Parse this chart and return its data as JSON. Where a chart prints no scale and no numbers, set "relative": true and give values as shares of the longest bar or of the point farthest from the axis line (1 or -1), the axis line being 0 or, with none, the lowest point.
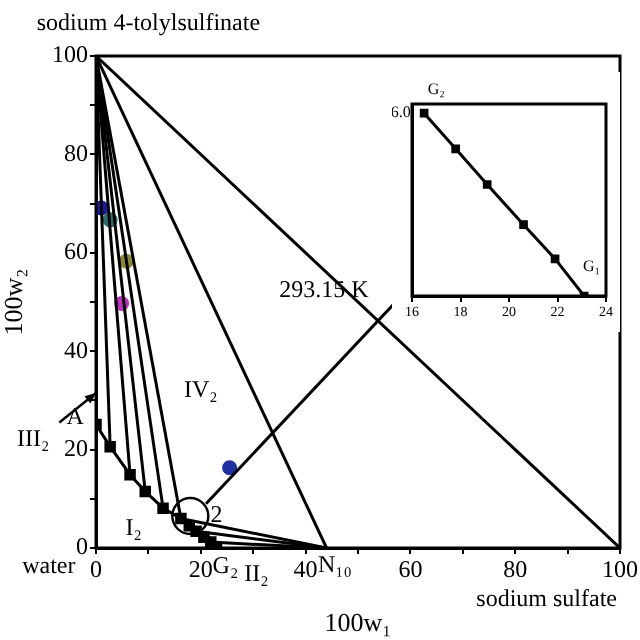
{
  "chart_data": [
    {
      "type": "line",
      "xlabel": "100w₁",
      "ylabel": "100w₂",
      "xlim": [
        0,
        100
      ],
      "ylim": [
        0,
        100
      ],
      "xticks": [
        0,
        {
          "value": 10,
          "label": null
        },
        20,
        {
          "value": 30,
          "label": null
        },
        40,
        {
          "value": 50,
          "label": null
        },
        60,
        {
          "value": 70,
          "label": null
        },
        80,
        {
          "value": 90,
          "label": null
        },
        100
      ],
      "yticks": [
        0,
        {
          "value": 10,
          "label": null
        },
        20,
        {
          "value": 30,
          "label": null
        },
        40,
        {
          "value": 50,
          "label": null
        },
        60,
        {
          "value": 70,
          "label": null
        },
        80,
        {
          "value": 90,
          "label": null
        },
        100
      ],
      "grid": false,
      "legend": false,
      "marker": "none",
      "series": [
        {
          "type": "line",
          "color": "#000000",
          "marker": "square",
          "x": [
            0,
            2.7,
            6.5,
            9.4,
            12.8,
            16.2,
            17.8,
            19.1,
            20.6,
            21.9,
            23
          ],
          "values": [
            25.1,
            20.6,
            14.9,
            11.5,
            8.1,
            6.0,
            4.5,
            3.4,
            2.2,
            1.2,
            0
          ]
        },
        {
          "type": "line",
          "color": "#000000",
          "x": [
            0,
            2.7
          ],
          "values": [
            100,
            20.6
          ]
        },
        {
          "type": "line",
          "color": "#000000",
          "x": [
            0,
            6.5
          ],
          "values": [
            100,
            14.9
          ]
        },
        {
          "type": "line",
          "color": "#000000",
          "x": [
            0,
            9.4
          ],
          "values": [
            100,
            11.5
          ]
        },
        {
          "type": "line",
          "color": "#000000",
          "x": [
            0,
            12.8
          ],
          "values": [
            100,
            8.1
          ]
        },
        {
          "type": "line",
          "color": "#000000",
          "x": [
            0,
            16.2
          ],
          "values": [
            100,
            6.0
          ]
        },
        {
          "type": "line",
          "color": "#000000",
          "x": [
            0,
            44
          ],
          "values": [
            100,
            0
          ]
        },
        {
          "type": "line",
          "color": "#000000",
          "x": [
            0,
            100
          ],
          "values": [
            100,
            0
          ]
        },
        {
          "type": "line",
          "color": "#000000",
          "x": [
            16.2,
            44
          ],
          "values": [
            6.0,
            0
          ]
        },
        {
          "type": "line",
          "color": "#000000",
          "x": [
            19.1,
            44
          ],
          "values": [
            3.4,
            0
          ]
        },
        {
          "type": "line",
          "color": "#000000",
          "x": [
            21.9,
            44
          ],
          "values": [
            1.2,
            0
          ]
        },
        {
          "type": "scatter",
          "marker": "circle",
          "colors": [
            "#1a1aa8",
            "#2e6e6e",
            "#8a8a3a",
            "#c030c0",
            "#2030a0"
          ],
          "x": [
            1.0,
            2.7,
            5.8,
            4.9,
            25.5
          ],
          "values": [
            69.1,
            66.7,
            58.3,
            49.7,
            16.3
          ]
        }
      ],
      "annotations": [
        "sodium 4-tolylsulfinate",
        "water",
        "sodium sulfate",
        "293.15 K",
        "IV₂",
        "III₂",
        "A",
        "I₂",
        "2",
        "G₂",
        "II₂",
        "N₁₀"
      ]
    },
    {
      "type": "line",
      "relative": true,
      "xlim": [
        16,
        24
      ],
      "xticks": [
        16,
        18,
        20,
        22,
        24
      ],
      "grid": false,
      "legend": false,
      "marker": "square",
      "series": [
        {
          "type": "line",
          "color": "#000000",
          "x": [
            16.5,
            17.8,
            19.1,
            20.6,
            21.9,
            23.1
          ],
          "values": [
            1,
            0.805,
            0.61,
            0.39,
            0.203,
            0
          ]
        }
      ],
      "annotations": [
        "G₂",
        "G₁",
        "6.0"
      ]
    }
  ]
}
